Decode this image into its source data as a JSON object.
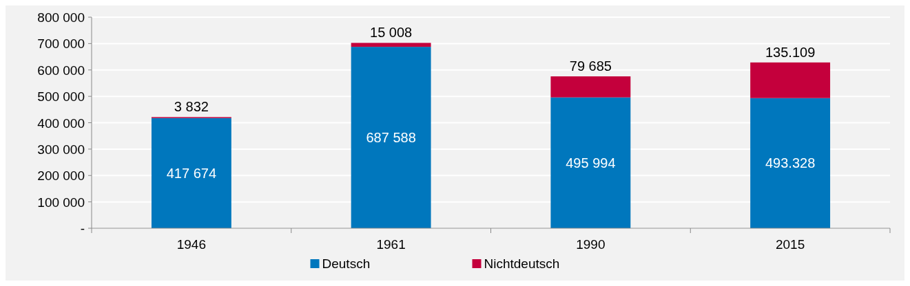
{
  "chart_data": {
    "type": "bar",
    "stacked": true,
    "categories": [
      "1946",
      "1961",
      "1990",
      "2015"
    ],
    "series": [
      {
        "name": "Deutsch",
        "color": "#0077bd",
        "values": [
          417674,
          687588,
          495994,
          493328
        ],
        "value_labels": [
          "417 674",
          "687 588",
          "495 994",
          "493.328"
        ]
      },
      {
        "name": "Nichtdeutsch",
        "color": "#c4003c",
        "values": [
          3832,
          15008,
          79685,
          135109
        ],
        "value_labels": [
          "3 832",
          "15 008",
          "79 685",
          "135.109"
        ]
      }
    ],
    "ylim": [
      0,
      800000
    ],
    "yticks": [
      {
        "value": 0,
        "label": "-"
      },
      {
        "value": 100000,
        "label": "100 000"
      },
      {
        "value": 200000,
        "label": "200 000"
      },
      {
        "value": 300000,
        "label": "300 000"
      },
      {
        "value": 400000,
        "label": "400 000"
      },
      {
        "value": 500000,
        "label": "500 000"
      },
      {
        "value": 600000,
        "label": "600 000"
      },
      {
        "value": 700000,
        "label": "700 000"
      },
      {
        "value": 800000,
        "label": "800 000"
      }
    ],
    "grid": "y",
    "legend": "bottom"
  }
}
